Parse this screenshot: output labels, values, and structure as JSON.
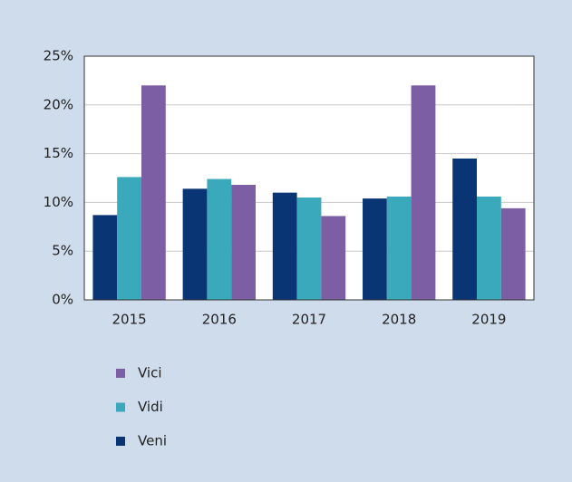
{
  "chart_data": {
    "type": "bar",
    "categories": [
      "2015",
      "2016",
      "2017",
      "2018",
      "2019"
    ],
    "series": [
      {
        "name": "Veni",
        "color": "#0a3575",
        "values": [
          8.7,
          11.4,
          11.0,
          10.4,
          14.5
        ]
      },
      {
        "name": "Vidi",
        "color": "#3aa9bb",
        "values": [
          12.6,
          12.4,
          10.5,
          10.6,
          10.6
        ]
      },
      {
        "name": "Vici",
        "color": "#7b5ea3",
        "values": [
          22,
          11.8,
          8.6,
          22,
          9.4
        ]
      }
    ],
    "ylim": [
      0,
      25
    ],
    "yticks": [
      {
        "value": 0,
        "label": "0%"
      },
      {
        "value": 5,
        "label": "5%"
      },
      {
        "value": 10,
        "label": "10%"
      },
      {
        "value": 15,
        "label": "15%"
      },
      {
        "value": 20,
        "label": "20%"
      },
      {
        "value": 25,
        "label": "25%"
      }
    ],
    "grid": true
  }
}
